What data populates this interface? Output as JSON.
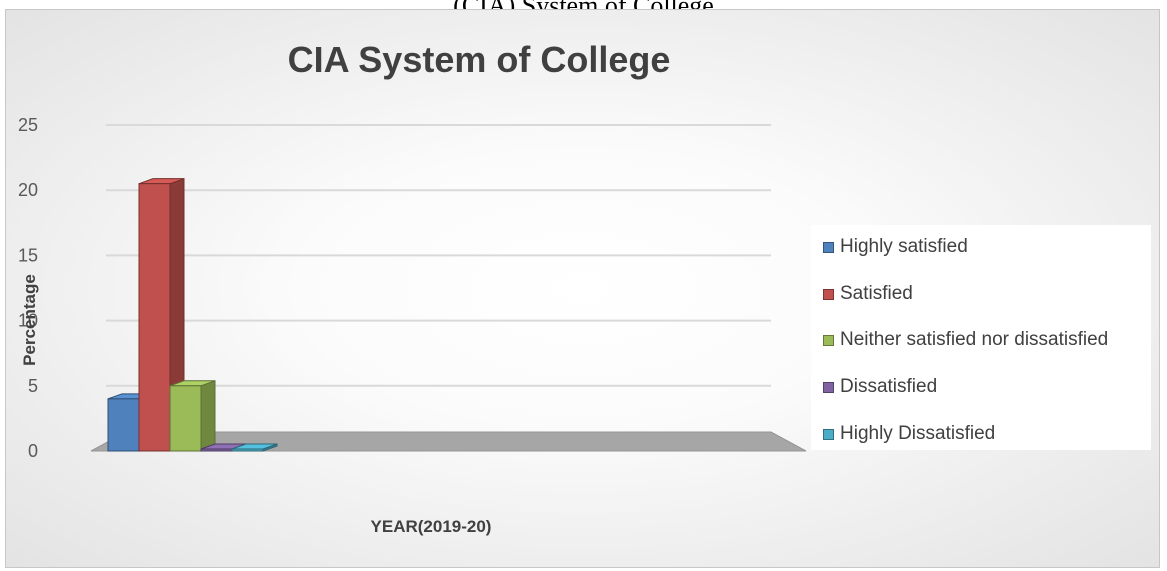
{
  "header_text": "(CIA) System of College",
  "chart_data": {
    "type": "bar",
    "title": "CIA System of College",
    "xlabel": "YEAR(2019-20)",
    "ylabel": "Percentage",
    "ylim": [
      0,
      25
    ],
    "yticks": [
      "0",
      "5",
      "10",
      "15",
      "20",
      "25"
    ],
    "grid": true,
    "legend_position": "right",
    "categories": [
      "YEAR(2019-20)"
    ],
    "series": [
      {
        "name": "Highly satisfied",
        "values": [
          4
        ],
        "color": "#4f81bd"
      },
      {
        "name": "Satisfied",
        "values": [
          20.5
        ],
        "color": "#c0504d"
      },
      {
        "name": "Neither satisfied nor dissatisfied",
        "values": [
          5
        ],
        "color": "#9bbb59"
      },
      {
        "name": "Dissatisfied",
        "values": [
          0
        ],
        "color": "#8064a2"
      },
      {
        "name": "Highly Dissatisfied",
        "values": [
          0
        ],
        "color": "#4bacc6"
      }
    ]
  }
}
